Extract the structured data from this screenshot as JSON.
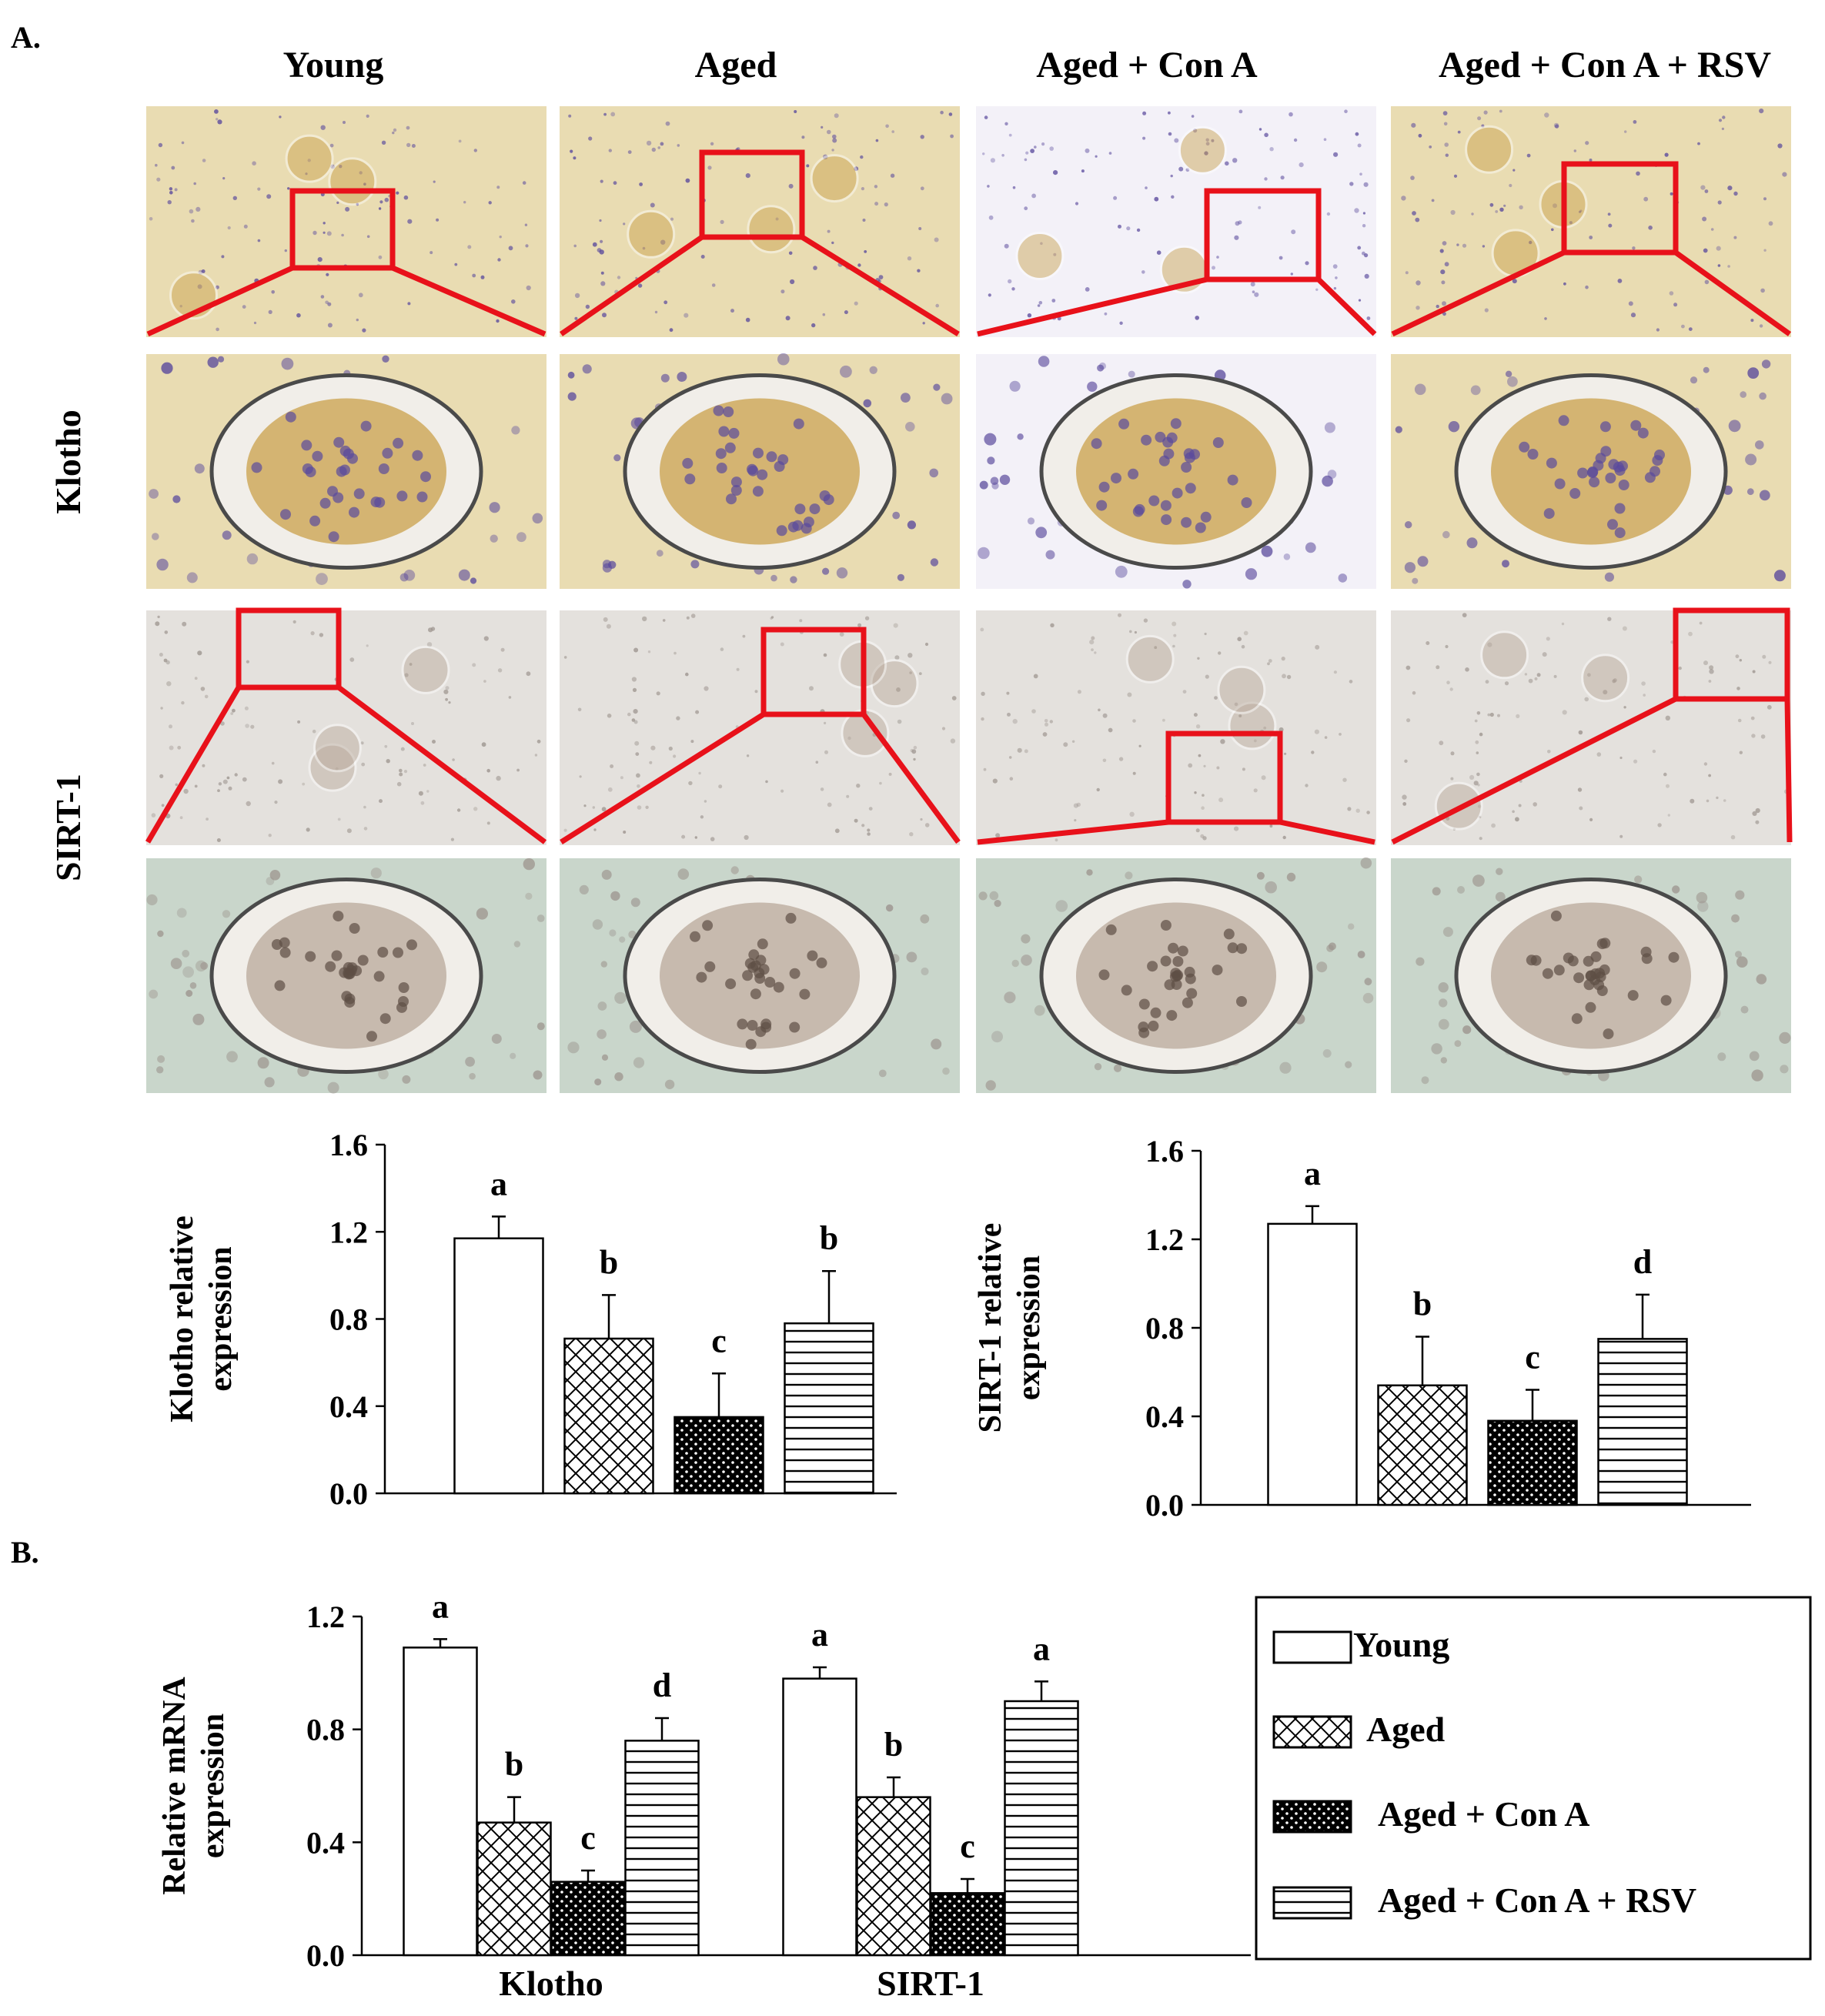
{
  "panel_labels": {
    "a": "A.",
    "b": "B."
  },
  "groups": [
    "Young",
    "Aged",
    "Aged + Con A",
    "Aged + Con A + RSV"
  ],
  "row_labels": {
    "klotho": "Klotho",
    "sirt1": "SIRT-1"
  },
  "colors": {
    "highlight_box": "#e8111a",
    "klotho_tissue": "#e9dcb2",
    "klotho_tissue_aged_con_a": "#f3f1f8",
    "klotho_stain": "#c9a04a",
    "nuclei": "#5a4a9c",
    "sirt1_tissue": "#e4e1dd",
    "sirt1_zoom_tissue": "#c9d6cb",
    "glomerulus": "#b8a89a"
  },
  "chart_data": [
    {
      "type": "bar",
      "categories": [
        "Young",
        "Aged",
        "Aged + Con A",
        "Aged + Con A + RSV"
      ],
      "values": [
        1.17,
        0.71,
        0.35,
        0.78
      ],
      "errors": [
        0.1,
        0.2,
        0.2,
        0.24
      ],
      "significance": [
        "a",
        "b",
        "c",
        "b"
      ],
      "ylabel": "Klotho  relative expression",
      "ylim": [
        0,
        1.6
      ],
      "yticks": [
        "0.0",
        "0.4",
        "0.8",
        "1.2",
        "1.6"
      ],
      "patterns": [
        "white",
        "crosshatch",
        "dots",
        "hlines"
      ]
    },
    {
      "type": "bar",
      "categories": [
        "Young",
        "Aged",
        "Aged + Con A",
        "Aged + Con A + RSV"
      ],
      "values": [
        1.27,
        0.54,
        0.38,
        0.75
      ],
      "errors": [
        0.08,
        0.22,
        0.14,
        0.2
      ],
      "significance": [
        "a",
        "b",
        "c",
        "d"
      ],
      "ylabel": "SIRT-1 relative expression",
      "ylim": [
        0,
        1.6
      ],
      "yticks": [
        "0.0",
        "0.4",
        "0.8",
        "1.2",
        "1.6"
      ],
      "patterns": [
        "white",
        "crosshatch",
        "dots",
        "hlines"
      ]
    },
    {
      "type": "bar",
      "categories": [
        "Klotho",
        "SIRT-1"
      ],
      "series": [
        {
          "name": "Young",
          "values": [
            1.09,
            0.98
          ],
          "errors": [
            0.03,
            0.04
          ],
          "significance": [
            "a",
            "a"
          ]
        },
        {
          "name": "Aged",
          "values": [
            0.47,
            0.56
          ],
          "errors": [
            0.09,
            0.07
          ],
          "significance": [
            "b",
            "b"
          ]
        },
        {
          "name": "Aged + Con A",
          "values": [
            0.26,
            0.22
          ],
          "errors": [
            0.04,
            0.05
          ],
          "significance": [
            "c",
            "c"
          ]
        },
        {
          "name": "Aged + Con A + RSV",
          "values": [
            0.76,
            0.9
          ],
          "errors": [
            0.08,
            0.07
          ],
          "significance": [
            "d",
            "a"
          ]
        }
      ],
      "ylabel": "Relative mRNA expression",
      "ylim": [
        0,
        1.2
      ],
      "yticks": [
        "0.0",
        "0.4",
        "0.8",
        "1.2"
      ],
      "legend": "right"
    }
  ]
}
